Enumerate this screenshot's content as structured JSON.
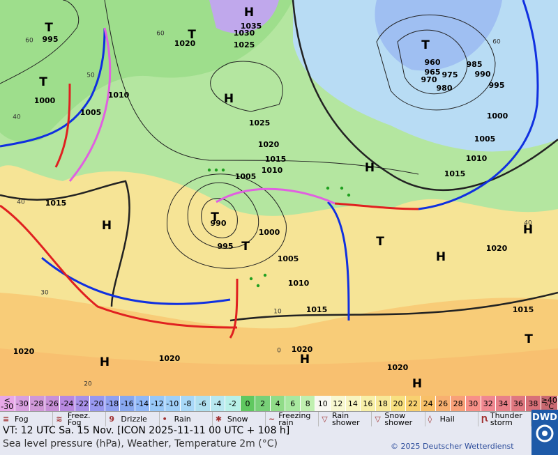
{
  "map": {
    "labels": [
      "T",
      "995",
      "T",
      "1020",
      "H",
      "1035",
      "1030",
      "1025",
      "T",
      "960",
      "965",
      "975",
      "970",
      "980",
      "985",
      "990",
      "995",
      "1000",
      "1005",
      "1010",
      "1015",
      "T",
      "1000",
      "1005",
      "1010",
      "H",
      "1025",
      "1020",
      "1015",
      "1010",
      "1005",
      "H",
      "1015",
      "H",
      "T",
      "990",
      "995",
      "T",
      "1000",
      "1005",
      "1010",
      "T",
      "H",
      "1020",
      "H",
      "1015",
      "1015",
      "T",
      "1020",
      "H",
      "1020",
      "H",
      "1020",
      "1020",
      "H"
    ],
    "grid_labels": [
      "60",
      "60",
      "50",
      "40",
      "40",
      "30",
      "20",
      "60",
      "40",
      "10",
      "0"
    ]
  },
  "temperature_scale": {
    "low_label": "<",
    "low_value": -30,
    "values": [
      -30,
      -28,
      -26,
      -24,
      -22,
      -20,
      -18,
      -16,
      -14,
      -12,
      -10,
      -8,
      -6,
      -4,
      -2,
      0,
      2,
      4,
      6,
      8,
      10,
      12,
      14,
      16,
      18,
      20,
      22,
      24,
      26,
      28,
      30,
      32,
      34,
      36,
      38
    ],
    "high_label": "≥40",
    "unit": "°C",
    "colors": [
      "#e8a8e8",
      "#d8a0e0",
      "#d098d8",
      "#c890d8",
      "#b888e0",
      "#a890e8",
      "#9898f0",
      "#90a0f0",
      "#88a8f0",
      "#90b8f8",
      "#98c8f8",
      "#a0d0f8",
      "#a8d8f8",
      "#b0e0f0",
      "#b8e8f0",
      "#b8f0e8",
      "#60c860",
      "#78d078",
      "#90dc88",
      "#a8e8a0",
      "#c0f0b0",
      "#f8f8f0",
      "#f8f8d0",
      "#f8f4c0",
      "#f8f0a8",
      "#f8e898",
      "#f8e080",
      "#f8d070",
      "#f8c068",
      "#f8b070",
      "#f8a078",
      "#f89088",
      "#f08890",
      "#e88088",
      "#e07880",
      "#d87078",
      "#c86870"
    ]
  },
  "weather_legend": [
    "Fog",
    "Freez. Fog",
    "Drizzle",
    "Rain",
    "Snow",
    "Freezing rain",
    "Rain shower",
    "Snow shower",
    "Hail",
    "Thunder storm"
  ],
  "footer": {
    "valid_time": "VT: 12 UTC Sa.  15 Nov. [ICON 2025-11-11  00 UTC + 108 h]",
    "subtitle": "Sea level pressure (hPa), Weather, Temperature 2m (°C)",
    "copyright": "© 2025 Deutscher Wetterdienst",
    "logo": "DWD"
  }
}
